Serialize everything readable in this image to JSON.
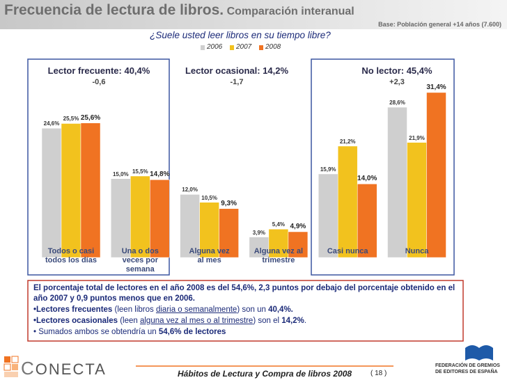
{
  "slide": {
    "title": "Frecuencia de lectura de libros.",
    "subtitle": "Comparación interanual",
    "base": "Base: Población general +14 años (7.600)",
    "footer_title": "Hábitos de Lectura y Compra de libros 2008",
    "page": "( 18 )",
    "logo_left": "ONECTA",
    "logo_left_initial": "C",
    "logo_right": "FEDERACIÓN DE GREMIOS DE EDITORES DE ESPAÑA"
  },
  "chart_data": {
    "type": "bar",
    "title": "¿Suele usted leer libros en su tiempo libre?",
    "categories": [
      "Todos o casi todos los días",
      "Una o dos veces por semana",
      "Alguna vez al mes",
      "Alguna vez al trimestre",
      "Casi nunca",
      "Nunca"
    ],
    "groups": [
      {
        "label": "Lector frecuente: 40,4%",
        "change": "-0,6"
      },
      {
        "label": "Lector ocasional: 14,2%",
        "change": "-1,7"
      },
      {
        "label": "No lector: 45,4%",
        "change": "+2,3"
      }
    ],
    "series": [
      {
        "name": "2006",
        "color": "#cfcfcf",
        "values": [
          24.6,
          15.0,
          12.0,
          3.9,
          15.9,
          28.6
        ],
        "value_labels": [
          "24,6%",
          "15,0%",
          "12,0%",
          "3,9%",
          "15,9%",
          "28,6%"
        ]
      },
      {
        "name": "2007",
        "color": "#f2c21e",
        "values": [
          25.5,
          15.5,
          10.5,
          5.4,
          21.2,
          21.9
        ],
        "value_labels": [
          "25,5%",
          "15,5%",
          "10,5%",
          "5,4%",
          "21,2%",
          "21,9%"
        ]
      },
      {
        "name": "2008",
        "color": "#f07322",
        "values": [
          25.6,
          14.8,
          9.3,
          4.9,
          14.0,
          31.4
        ],
        "value_labels": [
          "25,6%",
          "14,8%",
          "9,3%",
          "4,9%",
          "14,0%",
          "31,4%"
        ]
      }
    ]
  },
  "text_box": {
    "paragraphs": [
      [
        {
          "t": "El porcentaje total de lectores en el año 2008 es del 54,6%, 2,3 puntos por debajo del porcentaje obtenido en el año  2007 y 0,9 puntos menos que en 2006.",
          "b": true
        }
      ],
      [
        {
          "t": "•Lectores frecuentes",
          "b": true
        },
        {
          "t": " (leen libros "
        },
        {
          "t": "diaria o semanalmente",
          "u": true
        },
        {
          "t": ") son un "
        },
        {
          "t": "40,4%.",
          "b": true
        }
      ],
      [
        {
          "t": "•Lectores ocasionales",
          "b": true
        },
        {
          "t": " (leen "
        },
        {
          "t": "alguna vez al mes o al trimestre",
          "u": true
        },
        {
          "t": ") son el "
        },
        {
          "t": "14,2%",
          "b": true
        },
        {
          "t": "."
        }
      ],
      [
        {
          "t": "• Sumados ambos se obtendría un "
        },
        {
          "t": "54,6% de lectores",
          "b": true
        }
      ]
    ]
  }
}
